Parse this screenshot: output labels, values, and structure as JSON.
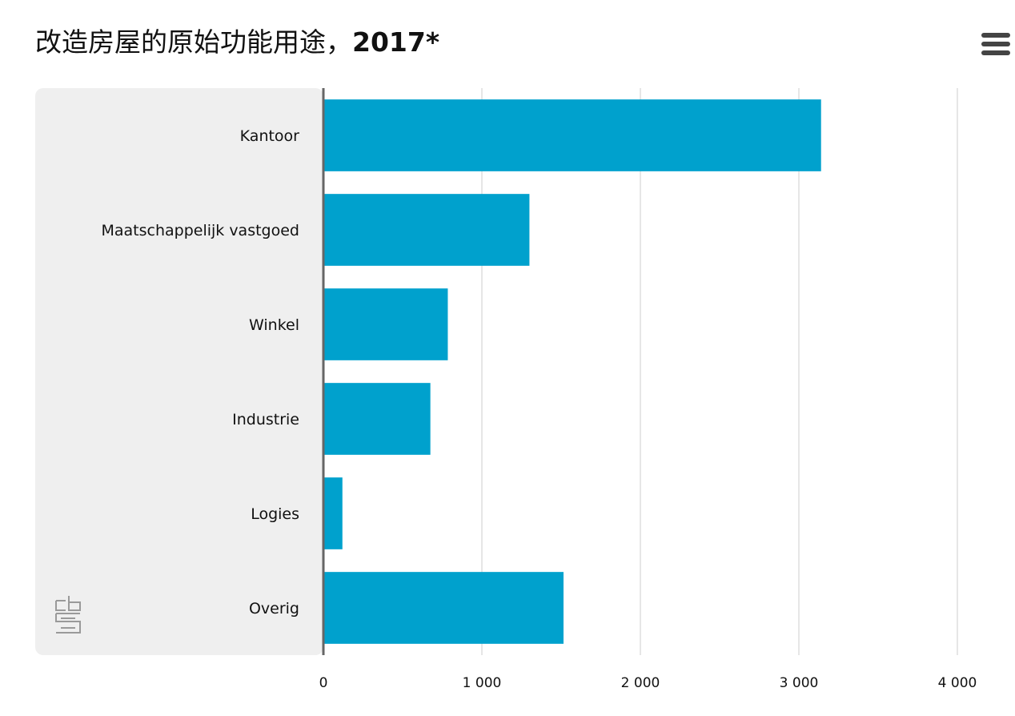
{
  "header": {
    "title_main": "改造房屋的原始功能用途，",
    "title_year": "2017*"
  },
  "menu": {
    "icon": "hamburger-menu-icon"
  },
  "logo": {
    "icon": "cbs-logo-icon",
    "text": "cbs"
  },
  "colors": {
    "bar": "#00a1cd",
    "panel": "#efefef",
    "axis": "#666666",
    "grid": "#cccccc"
  },
  "chart_data": {
    "type": "bar",
    "orientation": "horizontal",
    "categories": [
      "Kantoor",
      "Maatschappelijk vastgoed",
      "Winkel",
      "Industrie",
      "Logies",
      "Overig"
    ],
    "values": [
      3140,
      1300,
      785,
      675,
      120,
      1515
    ],
    "xlim": [
      0,
      4000
    ],
    "xticks": [
      0,
      1000,
      2000,
      3000,
      4000
    ],
    "xtick_labels": [
      "0",
      "1 000",
      "2 000",
      "3 000",
      "4 000"
    ],
    "grid": "vertical",
    "legend": "none"
  }
}
